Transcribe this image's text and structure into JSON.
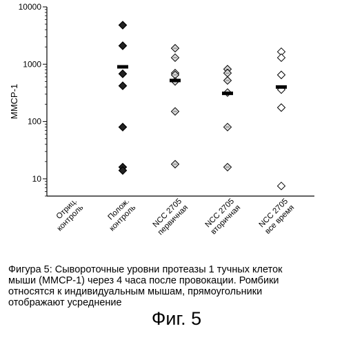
{
  "chart_data": {
    "type": "scatter",
    "ylabel": "MMCP-1",
    "y_scale": "log",
    "ylim": [
      5,
      10000
    ],
    "y_ticks": [
      10,
      100,
      1000,
      10000
    ],
    "y_tick_labels": [
      "10",
      "100",
      "1000",
      "10000"
    ],
    "categories": [
      [
        "Отриц.",
        "контроль"
      ],
      [
        "Полож.",
        "контроль"
      ],
      [
        "NCC 2705",
        "первичная"
      ],
      [
        "NCC 2705",
        "вторичная"
      ],
      [
        "NCC 2705",
        "все время"
      ]
    ],
    "series": [
      {
        "points": [
          {
            "cat": 1,
            "y": 4800,
            "style": "filled"
          },
          {
            "cat": 1,
            "y": 2100,
            "style": "filled"
          },
          {
            "cat": 1,
            "y": 680,
            "style": "filled"
          },
          {
            "cat": 1,
            "y": 420,
            "style": "filled"
          },
          {
            "cat": 1,
            "y": 80,
            "style": "filled"
          },
          {
            "cat": 1,
            "y": 16,
            "style": "filled"
          },
          {
            "cat": 1,
            "y": 14,
            "style": "filled"
          },
          {
            "cat": 2,
            "y": 1900,
            "style": "light"
          },
          {
            "cat": 2,
            "y": 1300,
            "style": "light"
          },
          {
            "cat": 2,
            "y": 700,
            "style": "light"
          },
          {
            "cat": 2,
            "y": 650,
            "style": "light"
          },
          {
            "cat": 2,
            "y": 500,
            "style": "light"
          },
          {
            "cat": 2,
            "y": 150,
            "style": "light"
          },
          {
            "cat": 2,
            "y": 18,
            "style": "light"
          },
          {
            "cat": 3,
            "y": 820,
            "style": "light"
          },
          {
            "cat": 3,
            "y": 700,
            "style": "light"
          },
          {
            "cat": 3,
            "y": 520,
            "style": "light"
          },
          {
            "cat": 3,
            "y": 320,
            "style": "light"
          },
          {
            "cat": 3,
            "y": 80,
            "style": "light"
          },
          {
            "cat": 3,
            "y": 16,
            "style": "light"
          },
          {
            "cat": 4,
            "y": 1650,
            "style": "open"
          },
          {
            "cat": 4,
            "y": 1300,
            "style": "open"
          },
          {
            "cat": 4,
            "y": 650,
            "style": "open"
          },
          {
            "cat": 4,
            "y": 360,
            "style": "open"
          },
          {
            "cat": 4,
            "y": 175,
            "style": "open"
          },
          {
            "cat": 4,
            "y": 7.5,
            "style": "open"
          }
        ]
      }
    ],
    "means": [
      {
        "cat": 1,
        "y": 900
      },
      {
        "cat": 2,
        "y": 520
      },
      {
        "cat": 3,
        "y": 310
      },
      {
        "cat": 4,
        "y": 400
      }
    ]
  },
  "caption_lines": [
    "Фигура 5: Сывороточные уровни протеазы 1 тучных клеток",
    "мыши (MMCP-1) через 4 часа после провокации. Ромбики",
    "относятся к индивидуальным мышам, прямоугольники",
    "отображают усреднение"
  ],
  "figure_label": "Фиг. 5"
}
